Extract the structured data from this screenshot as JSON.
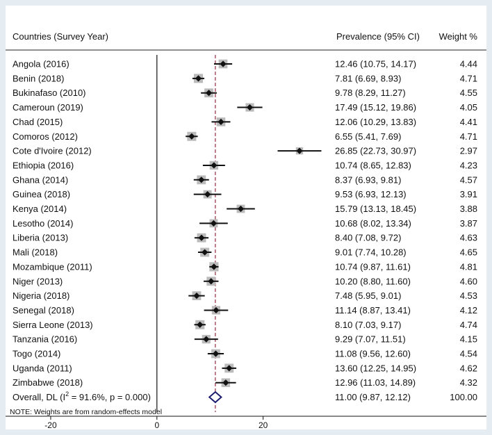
{
  "chart_data": {
    "type": "forest",
    "header": {
      "study_label": "Countries (Survey Year)",
      "estimate_label": "Prevalence (95% CI)",
      "weight_label": "Weight %"
    },
    "studies": [
      {
        "label": "Angola (2016)",
        "est": 12.46,
        "lo": 10.75,
        "hi": 14.17,
        "text": "12.46 (10.75, 14.17)",
        "weight": "4.44"
      },
      {
        "label": "Benin (2018)",
        "est": 7.81,
        "lo": 6.69,
        "hi": 8.93,
        "text": "7.81 (6.69, 8.93)",
        "weight": "4.71"
      },
      {
        "label": "Bukinafaso (2010)",
        "est": 9.78,
        "lo": 8.29,
        "hi": 11.27,
        "text": "9.78 (8.29, 11.27)",
        "weight": "4.55"
      },
      {
        "label": "Cameroun (2019)",
        "est": 17.49,
        "lo": 15.12,
        "hi": 19.86,
        "text": "17.49 (15.12, 19.86)",
        "weight": "4.05"
      },
      {
        "label": "Chad (2015)",
        "est": 12.06,
        "lo": 10.29,
        "hi": 13.83,
        "text": "12.06 (10.29, 13.83)",
        "weight": "4.41"
      },
      {
        "label": "Comoros (2012)",
        "est": 6.55,
        "lo": 5.41,
        "hi": 7.69,
        "text": "6.55 (5.41, 7.69)",
        "weight": "4.71"
      },
      {
        "label": "Cote d'Ivoire (2012)",
        "est": 26.85,
        "lo": 22.73,
        "hi": 30.97,
        "text": "26.85 (22.73, 30.97)",
        "weight": "2.97"
      },
      {
        "label": "Ethiopia (2016)",
        "est": 10.74,
        "lo": 8.65,
        "hi": 12.83,
        "text": "10.74 (8.65, 12.83)",
        "weight": "4.23"
      },
      {
        "label": "Ghana (2014)",
        "est": 8.37,
        "lo": 6.93,
        "hi": 9.81,
        "text": "8.37 (6.93, 9.81)",
        "weight": "4.57"
      },
      {
        "label": "Guinea (2018)",
        "est": 9.53,
        "lo": 6.93,
        "hi": 12.13,
        "text": "9.53 (6.93, 12.13)",
        "weight": "3.91"
      },
      {
        "label": "Kenya (2014)",
        "est": 15.79,
        "lo": 13.13,
        "hi": 18.45,
        "text": "15.79 (13.13, 18.45)",
        "weight": "3.88"
      },
      {
        "label": "Lesotho (2014)",
        "est": 10.68,
        "lo": 8.02,
        "hi": 13.34,
        "text": "10.68 (8.02, 13.34)",
        "weight": "3.87"
      },
      {
        "label": "Liberia (2013)",
        "est": 8.4,
        "lo": 7.08,
        "hi": 9.72,
        "text": "8.40 (7.08, 9.72)",
        "weight": "4.63"
      },
      {
        "label": "Mali (2018)",
        "est": 9.01,
        "lo": 7.74,
        "hi": 10.28,
        "text": "9.01 (7.74, 10.28)",
        "weight": "4.65"
      },
      {
        "label": "Mozambique (2011)",
        "est": 10.74,
        "lo": 9.87,
        "hi": 11.61,
        "text": "10.74 (9.87, 11.61)",
        "weight": "4.81"
      },
      {
        "label": "Niger (2013)",
        "est": 10.2,
        "lo": 8.8,
        "hi": 11.6,
        "text": "10.20 (8.80, 11.60)",
        "weight": "4.60"
      },
      {
        "label": "Nigeria (2018)",
        "est": 7.48,
        "lo": 5.95,
        "hi": 9.01,
        "text": "7.48 (5.95, 9.01)",
        "weight": "4.53"
      },
      {
        "label": "Senegal (2018)",
        "est": 11.14,
        "lo": 8.87,
        "hi": 13.41,
        "text": "11.14 (8.87, 13.41)",
        "weight": "4.12"
      },
      {
        "label": "Sierra Leone (2013)",
        "est": 8.1,
        "lo": 7.03,
        "hi": 9.17,
        "text": "8.10 (7.03, 9.17)",
        "weight": "4.74"
      },
      {
        "label": "Tanzania (2016)",
        "est": 9.29,
        "lo": 7.07,
        "hi": 11.51,
        "text": "9.29 (7.07, 11.51)",
        "weight": "4.15"
      },
      {
        "label": "Togo (2014)",
        "est": 11.08,
        "lo": 9.56,
        "hi": 12.6,
        "text": "11.08 (9.56, 12.60)",
        "weight": "4.54"
      },
      {
        "label": "Uganda (2011)",
        "est": 13.6,
        "lo": 12.25,
        "hi": 14.95,
        "text": "13.60 (12.25, 14.95)",
        "weight": "4.62"
      },
      {
        "label": "Zimbabwe (2018)",
        "est": 12.96,
        "lo": 11.03,
        "hi": 14.89,
        "text": "12.96 (11.03, 14.89)",
        "weight": "4.32"
      }
    ],
    "overall": {
      "label_prefix": "Overall, DL (I",
      "label_sup": "2",
      "label_suffix": " = 91.6%, p = 0.000)",
      "est": 11.0,
      "lo": 9.87,
      "hi": 12.12,
      "text": "11.00 (9.87, 12.12)",
      "weight": "100.00"
    },
    "note": "NOTE: Weights are from random-effects model",
    "x_ticks": [
      -20,
      0,
      20
    ],
    "x_range": [
      -28.5,
      33
    ],
    "null_line": 0,
    "colors": {
      "background": "#e6edf2",
      "panel": "#ffffff",
      "square": "#bbbbbb",
      "marker": "#111111",
      "overall_diamond": "#1c1c6e",
      "pooled_line": "#8b1a2e"
    }
  }
}
